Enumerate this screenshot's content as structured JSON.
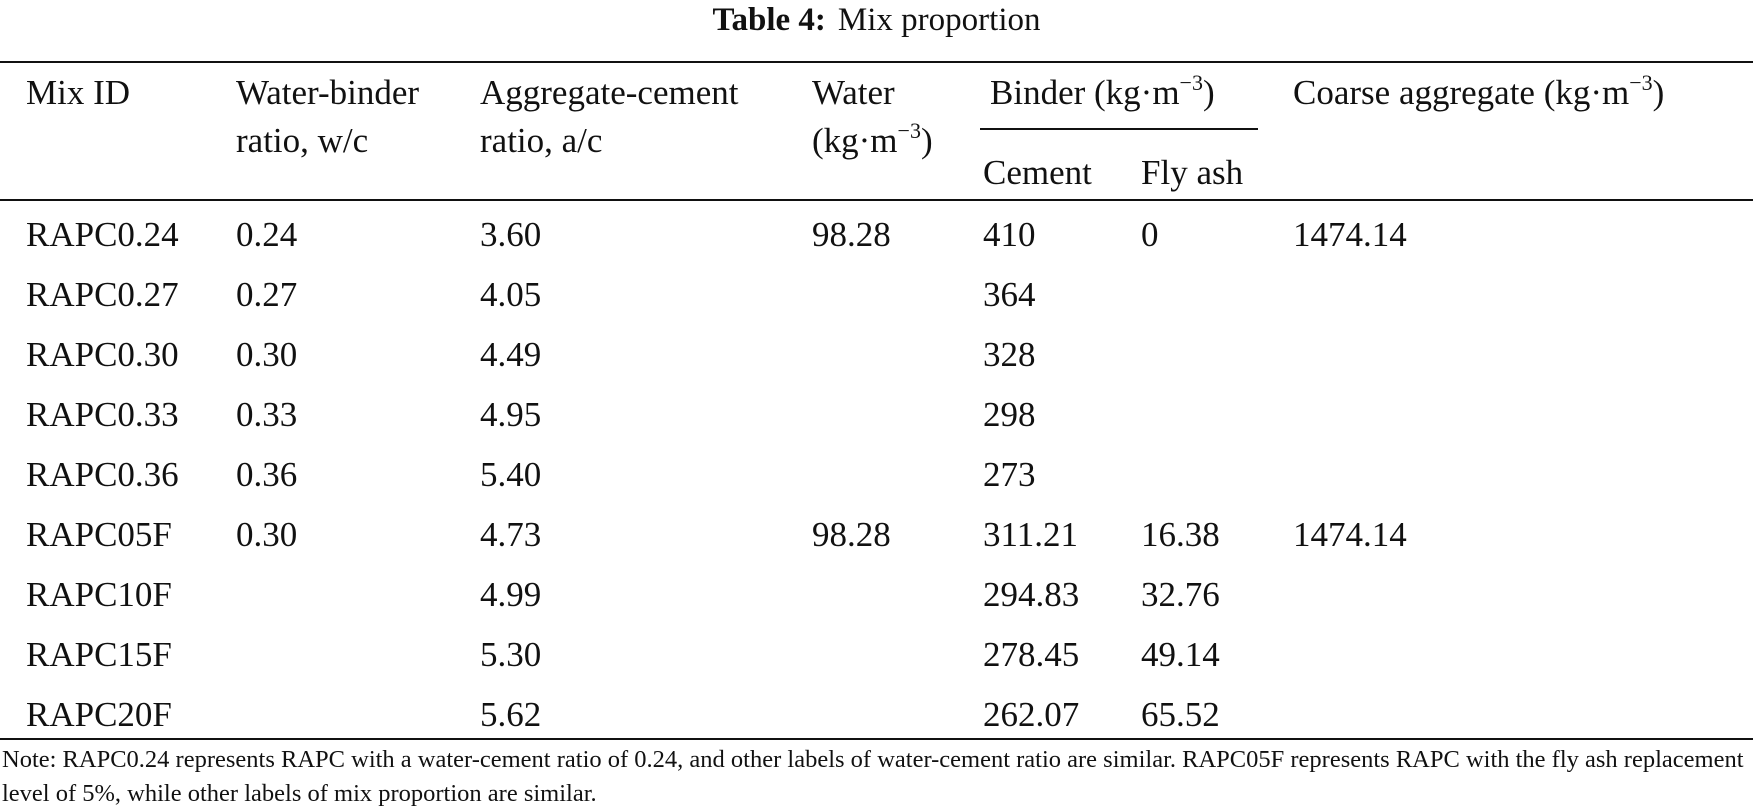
{
  "table": {
    "caption_label": "Table 4:",
    "caption_text": "Mix proportion",
    "headers": {
      "mix_id": "Mix ID",
      "wb_line1": "Water-binder",
      "wb_line2": "ratio, w/c",
      "ac_line1": "Aggregate-cement",
      "ac_line2": "ratio, a/c",
      "water_line1": "Water",
      "water_line2_base": "(kg·m",
      "water_line2_exp": "−3",
      "water_line2_close": ")",
      "binder_base": "Binder (kg·m",
      "binder_exp": "−3",
      "binder_close": ")",
      "cement": "Cement",
      "fly_ash": "Fly ash",
      "coarse_base": "Coarse aggregate (kg·m",
      "coarse_exp": "−3",
      "coarse_close": ")"
    },
    "rows": [
      {
        "mix_id": "RAPC0.24",
        "wb": "0.24",
        "ac": "3.60",
        "water": "98.28",
        "cement": "410",
        "fly_ash": "0",
        "coarse": "1474.14"
      },
      {
        "mix_id": "RAPC0.27",
        "wb": "0.27",
        "ac": "4.05",
        "water": "",
        "cement": "364",
        "fly_ash": "",
        "coarse": ""
      },
      {
        "mix_id": "RAPC0.30",
        "wb": "0.30",
        "ac": "4.49",
        "water": "",
        "cement": "328",
        "fly_ash": "",
        "coarse": ""
      },
      {
        "mix_id": "RAPC0.33",
        "wb": "0.33",
        "ac": "4.95",
        "water": "",
        "cement": "298",
        "fly_ash": "",
        "coarse": ""
      },
      {
        "mix_id": "RAPC0.36",
        "wb": "0.36",
        "ac": "5.40",
        "water": "",
        "cement": "273",
        "fly_ash": "",
        "coarse": ""
      },
      {
        "mix_id": "RAPC05F",
        "wb": "0.30",
        "ac": "4.73",
        "water": "98.28",
        "cement": "311.21",
        "fly_ash": "16.38",
        "coarse": "1474.14"
      },
      {
        "mix_id": "RAPC10F",
        "wb": "",
        "ac": "4.99",
        "water": "",
        "cement": "294.83",
        "fly_ash": "32.76",
        "coarse": ""
      },
      {
        "mix_id": "RAPC15F",
        "wb": "",
        "ac": "5.30",
        "water": "",
        "cement": "278.45",
        "fly_ash": "49.14",
        "coarse": ""
      },
      {
        "mix_id": "RAPC20F",
        "wb": "",
        "ac": "5.62",
        "water": "",
        "cement": "262.07",
        "fly_ash": "65.52",
        "coarse": ""
      }
    ],
    "note": "Note: RAPC0.24 represents RAPC with a water-cement ratio of 0.24, and other labels of water-cement ratio are similar. RAPC05F represents RAPC with the fly ash replacement level of 5%, while other labels of mix proportion are similar."
  }
}
